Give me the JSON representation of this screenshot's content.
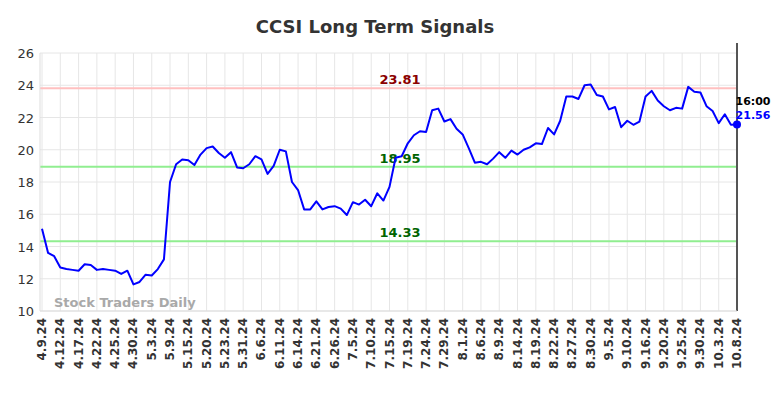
{
  "chart_data": {
    "type": "line",
    "title": "CCSI Long Term Signals",
    "categories": [
      "4.9.24",
      null,
      null,
      "4.12.24",
      null,
      null,
      "4.17.24",
      null,
      null,
      "4.22.24",
      null,
      null,
      "4.25.24",
      null,
      null,
      "4.30.24",
      null,
      null,
      "5.3.24",
      null,
      null,
      "5.9.24",
      null,
      null,
      "5.15.24",
      null,
      null,
      "5.20.24",
      null,
      null,
      "5.23.24",
      null,
      null,
      "5.31.24",
      null,
      null,
      "6.6.24",
      null,
      null,
      "6.11.24",
      null,
      null,
      "6.14.24",
      null,
      null,
      "6.21.24",
      null,
      null,
      "6.26.24",
      null,
      null,
      "7.5.24",
      null,
      null,
      "7.10.24",
      null,
      null,
      "7.15.24",
      null,
      null,
      "7.19.24",
      null,
      null,
      "7.24.24",
      null,
      null,
      "7.29.24",
      null,
      null,
      "8.1.24",
      null,
      null,
      "8.6.24",
      null,
      null,
      "8.9.24",
      null,
      null,
      "8.14.24",
      null,
      null,
      "8.19.24",
      null,
      null,
      "8.22.24",
      null,
      null,
      "8.27.24",
      null,
      null,
      "8.30.24",
      null,
      null,
      "9.5.24",
      null,
      null,
      "9.10.24",
      null,
      null,
      "9.16.24",
      null,
      null,
      "9.20.24",
      null,
      null,
      "9.25.24",
      null,
      null,
      "9.30.24",
      null,
      null,
      "10.3.24",
      null,
      null,
      "10.8.24"
    ],
    "values": [
      15.1,
      13.6,
      13.4,
      12.7,
      12.6,
      12.55,
      12.5,
      12.9,
      12.85,
      12.55,
      12.6,
      12.55,
      12.5,
      12.3,
      12.5,
      11.65,
      11.8,
      12.25,
      12.2,
      12.6,
      13.2,
      18.0,
      19.1,
      19.4,
      19.35,
      19.05,
      19.7,
      20.1,
      20.2,
      19.8,
      19.5,
      19.85,
      18.9,
      18.85,
      19.1,
      19.6,
      19.4,
      18.5,
      19.0,
      20.0,
      19.9,
      18.0,
      17.5,
      16.3,
      16.3,
      16.8,
      16.3,
      16.45,
      16.5,
      16.35,
      15.95,
      16.75,
      16.6,
      16.9,
      16.5,
      17.3,
      16.85,
      17.7,
      19.5,
      19.6,
      20.4,
      20.9,
      21.15,
      21.1,
      22.45,
      22.55,
      21.75,
      21.9,
      21.3,
      20.95,
      20.1,
      19.2,
      19.25,
      19.1,
      19.45,
      19.85,
      19.5,
      19.95,
      19.7,
      20.0,
      20.15,
      20.4,
      20.35,
      21.35,
      20.95,
      21.8,
      23.3,
      23.3,
      23.15,
      24.0,
      24.05,
      23.4,
      23.3,
      22.5,
      22.65,
      21.4,
      21.8,
      21.55,
      21.75,
      23.3,
      23.65,
      23.05,
      22.7,
      22.45,
      22.6,
      22.55,
      23.9,
      23.6,
      23.55,
      22.7,
      22.4,
      21.65,
      22.2,
      21.55,
      21.56
    ],
    "color": "#0000ff",
    "ylim": [
      10,
      26
    ],
    "yticks": [
      10,
      12,
      14,
      16,
      18,
      20,
      22,
      24,
      26
    ],
    "grid": true,
    "levels": [
      {
        "value": 23.81,
        "label": "23.81",
        "color": "#ffc0c0"
      },
      {
        "value": 18.95,
        "label": "18.95",
        "color": "#90ee90"
      },
      {
        "value": 14.33,
        "label": "14.33",
        "color": "#90ee90"
      }
    ],
    "last_label": {
      "time": "16:00",
      "value": 21.56
    },
    "watermark": "Stock Traders Daily"
  }
}
